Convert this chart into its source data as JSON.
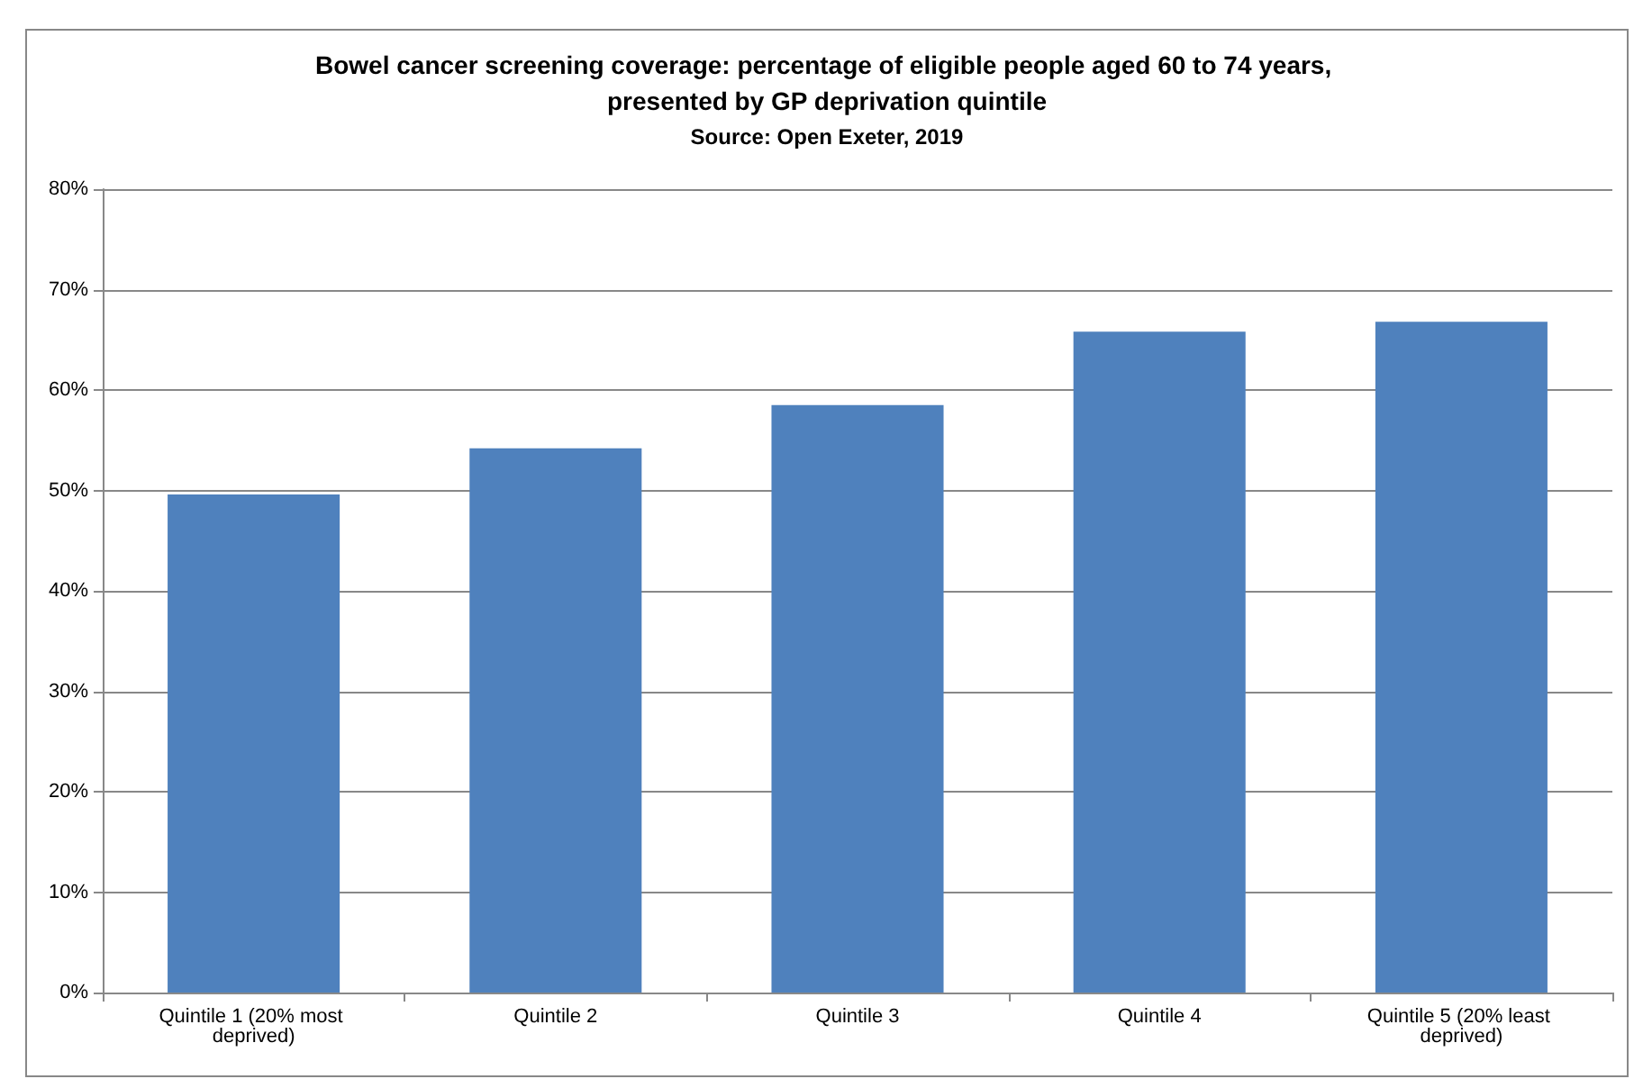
{
  "chart_data": {
    "type": "bar",
    "title": "Bowel cancer screening coverage: percentage of eligible people aged 60 to 74 years, presented by GP deprivation quintile",
    "subtitle": "Source: Open Exeter, 2019",
    "categories": [
      "Quintile 1 (20% most deprived)",
      "Quintile 2",
      "Quintile 3",
      "Quintile 4",
      "Quintile 5 (20% least deprived)"
    ],
    "values": [
      49.6,
      54.2,
      58.5,
      65.8,
      66.8
    ],
    "color": "#4f81bd",
    "ylim": [
      0,
      80
    ],
    "yticks": [
      {
        "value": 0,
        "label": "0%"
      },
      {
        "value": 10,
        "label": "10%"
      },
      {
        "value": 20,
        "label": "20%"
      },
      {
        "value": 30,
        "label": "30%"
      },
      {
        "value": 40,
        "label": "40%"
      },
      {
        "value": 50,
        "label": "50%"
      },
      {
        "value": 60,
        "label": "60%"
      },
      {
        "value": 70,
        "label": "70%"
      },
      {
        "value": 80,
        "label": "80%"
      }
    ],
    "grid": "y"
  }
}
